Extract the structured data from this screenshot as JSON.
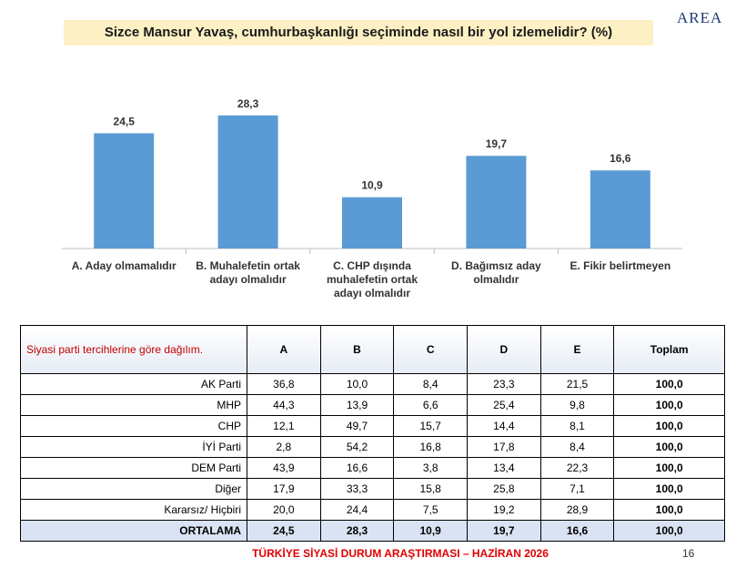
{
  "chart_data": {
    "type": "bar",
    "title": "Sizce Mansur Yavaş, cumhurbaşkanlığı seçiminde nasıl bir yol izlemelidir? (%)",
    "categories": [
      "A. Aday olmamalıdır",
      "B. Muhalefetin ortak adayı olmalıdır",
      "C. CHP dışında muhalefetin ortak adayı olmalıdır",
      "D. Bağımsız aday olmalıdır",
      "E. Fikir belirtmeyen"
    ],
    "values": [
      24.5,
      28.3,
      10.9,
      19.7,
      16.6
    ],
    "value_labels": [
      "24,5",
      "28,3",
      "10,9",
      "19,7",
      "16,6"
    ],
    "color": "#5b9bd5",
    "ylim": [
      0,
      30
    ]
  },
  "logo": "AREA",
  "table": {
    "header": [
      "Siyasi parti tercihlerine göre dağılım.",
      "A",
      "B",
      "C",
      "D",
      "E",
      "Toplam"
    ],
    "rows": [
      [
        "AK Parti",
        "36,8",
        "10,0",
        "8,4",
        "23,3",
        "21,5",
        "100,0"
      ],
      [
        "MHP",
        "44,3",
        "13,9",
        "6,6",
        "25,4",
        "9,8",
        "100,0"
      ],
      [
        "CHP",
        "12,1",
        "49,7",
        "15,7",
        "14,4",
        "8,1",
        "100,0"
      ],
      [
        "İYİ Parti",
        "2,8",
        "54,2",
        "16,8",
        "17,8",
        "8,4",
        "100,0"
      ],
      [
        "DEM Parti",
        "43,9",
        "16,6",
        "3,8",
        "13,4",
        "22,3",
        "100,0"
      ],
      [
        "Diğer",
        "17,9",
        "33,3",
        "15,8",
        "25,8",
        "7,1",
        "100,0"
      ],
      [
        "Kararsız/ Hiçbiri",
        "20,0",
        "24,4",
        "7,5",
        "19,2",
        "28,9",
        "100,0"
      ],
      [
        "ORTALAMA",
        "24,5",
        "28,3",
        "10,9",
        "19,7",
        "16,6",
        "100,0"
      ]
    ]
  },
  "footer": "TÜRKİYE SİYASİ DURUM ARAŞTIRMASI – HAZİRAN 2026",
  "page_number": "16"
}
